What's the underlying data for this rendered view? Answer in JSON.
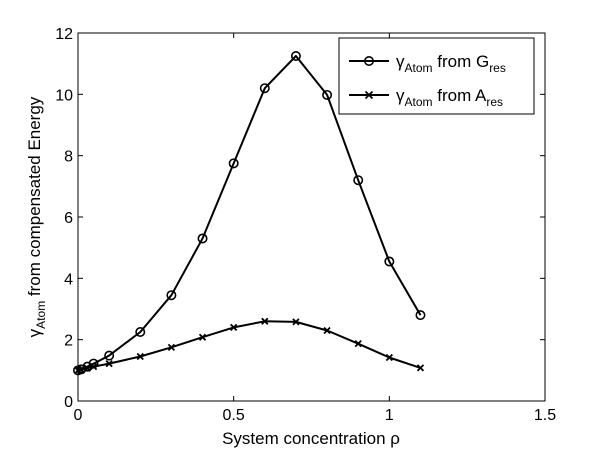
{
  "chart_data": {
    "type": "line",
    "xlabel": "System concentration ρ",
    "ylabel": {
      "base": "γ",
      "sub": "Atom",
      "rest": " from compensated Energy"
    },
    "xlim": [
      0,
      1.5
    ],
    "ylim": [
      0,
      12
    ],
    "xticks": [
      0,
      0.5,
      1,
      1.5
    ],
    "xtick_labels": [
      "0",
      "0.5",
      "1",
      "1.5"
    ],
    "yticks": [
      0,
      2,
      4,
      6,
      8,
      10,
      12
    ],
    "ytick_labels": [
      "0",
      "2",
      "4",
      "6",
      "8",
      "10",
      "12"
    ],
    "grid": false,
    "legend_position": "top-right",
    "series": [
      {
        "name": "γAtom from Gres",
        "legend": {
          "base": "γ",
          "sub1": "Atom",
          "mid": " from G",
          "sub2": "res"
        },
        "marker": "circle",
        "color": "#000000",
        "x": [
          0,
          0.01,
          0.03,
          0.05,
          0.1,
          0.2,
          0.3,
          0.4,
          0.5,
          0.6,
          0.7,
          0.8,
          0.9,
          1.0,
          1.1
        ],
        "y": [
          1.0,
          1.03,
          1.12,
          1.22,
          1.48,
          2.25,
          3.45,
          5.3,
          7.75,
          10.2,
          11.25,
          9.98,
          7.2,
          4.55,
          2.8
        ]
      },
      {
        "name": "γAtom from Ares",
        "legend": {
          "base": "γ",
          "sub1": "Atom",
          "mid": " from A",
          "sub2": "res"
        },
        "marker": "x",
        "color": "#000000",
        "x": [
          0,
          0.01,
          0.03,
          0.05,
          0.1,
          0.2,
          0.3,
          0.4,
          0.5,
          0.6,
          0.7,
          0.8,
          0.9,
          1.0,
          1.1
        ],
        "y": [
          1.0,
          1.02,
          1.07,
          1.12,
          1.22,
          1.45,
          1.75,
          2.08,
          2.4,
          2.6,
          2.58,
          2.3,
          1.87,
          1.42,
          1.08
        ]
      }
    ]
  }
}
